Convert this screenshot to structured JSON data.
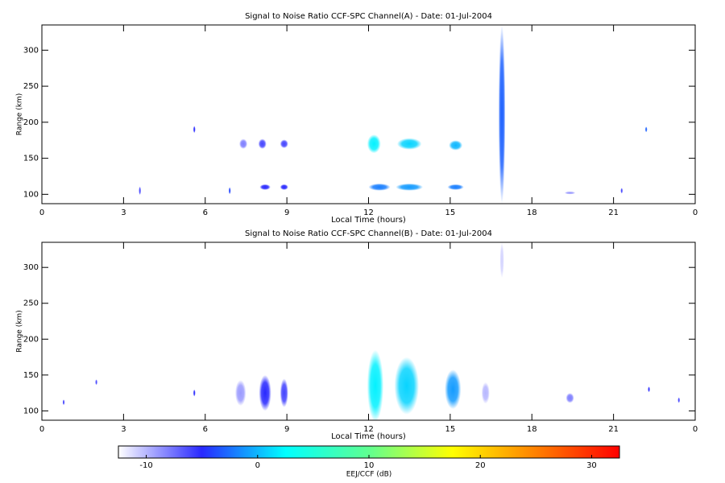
{
  "chart_data": [
    {
      "type": "heatmap",
      "title": "Signal to Noise Ratio CCF-SPC Channel(A) - Date: 01-Jul-2004",
      "xlabel": "Local Time (hours)",
      "ylabel": "Range (km)",
      "xlim": [
        0,
        24
      ],
      "xticks": [
        0,
        3,
        6,
        9,
        12,
        15,
        18,
        21,
        {
          "value": 24,
          "label": "0"
        }
      ],
      "ylim": [
        87,
        335
      ],
      "yticks": [
        100,
        150,
        200,
        250,
        300
      ],
      "blobs": [
        {
          "x": 7.4,
          "y": 170,
          "width": 0.3,
          "height": 14,
          "value": -8
        },
        {
          "x": 8.1,
          "y": 170,
          "width": 0.3,
          "height": 14,
          "value": -6
        },
        {
          "x": 8.9,
          "y": 170,
          "width": 0.3,
          "height": 12,
          "value": -6
        },
        {
          "x": 12.2,
          "y": 170,
          "width": 0.5,
          "height": 26,
          "value": 2
        },
        {
          "x": 13.5,
          "y": 170,
          "width": 0.9,
          "height": 16,
          "value": 1
        },
        {
          "x": 15.2,
          "y": 168,
          "width": 0.5,
          "height": 14,
          "value": 0
        },
        {
          "x": 8.2,
          "y": 110,
          "width": 0.4,
          "height": 8,
          "value": -5
        },
        {
          "x": 8.9,
          "y": 110,
          "width": 0.3,
          "height": 8,
          "value": -5
        },
        {
          "x": 12.4,
          "y": 110,
          "width": 0.8,
          "height": 10,
          "value": -2
        },
        {
          "x": 13.5,
          "y": 110,
          "width": 1.0,
          "height": 10,
          "value": -1
        },
        {
          "x": 15.2,
          "y": 110,
          "width": 0.6,
          "height": 8,
          "value": -2
        },
        {
          "x": 16.9,
          "y": 211,
          "width": 0.25,
          "height": 248,
          "value": -3
        },
        {
          "x": 3.6,
          "y": 105,
          "width": 0.08,
          "height": 12,
          "value": -6
        },
        {
          "x": 5.6,
          "y": 190,
          "width": 0.08,
          "height": 10,
          "value": -5
        },
        {
          "x": 6.9,
          "y": 105,
          "width": 0.08,
          "height": 10,
          "value": -4
        },
        {
          "x": 22.2,
          "y": 190,
          "width": 0.08,
          "height": 8,
          "value": -3
        },
        {
          "x": 21.3,
          "y": 105,
          "width": 0.08,
          "height": 8,
          "value": -6
        },
        {
          "x": 19.4,
          "y": 102,
          "width": 0.4,
          "height": 4,
          "value": -9
        }
      ]
    },
    {
      "type": "heatmap",
      "title": "Signal to Noise Ratio CCF-SPC Channel(B) - Date: 01-Jul-2004",
      "xlabel": "Local Time (hours)",
      "ylabel": "Range (km)",
      "xlim": [
        0,
        24
      ],
      "xticks": [
        0,
        3,
        6,
        9,
        12,
        15,
        18,
        21,
        {
          "value": 24,
          "label": "0"
        }
      ],
      "ylim": [
        87,
        335
      ],
      "yticks": [
        100,
        150,
        200,
        250,
        300
      ],
      "blobs": [
        {
          "x": 7.3,
          "y": 125,
          "width": 0.4,
          "height": 36,
          "value": -9
        },
        {
          "x": 8.2,
          "y": 125,
          "width": 0.45,
          "height": 50,
          "value": -5
        },
        {
          "x": 8.9,
          "y": 125,
          "width": 0.3,
          "height": 40,
          "value": -6
        },
        {
          "x": 12.25,
          "y": 135,
          "width": 0.6,
          "height": 100,
          "value": 2
        },
        {
          "x": 13.4,
          "y": 135,
          "width": 0.9,
          "height": 80,
          "value": 1
        },
        {
          "x": 15.1,
          "y": 130,
          "width": 0.6,
          "height": 55,
          "value": -1
        },
        {
          "x": 16.3,
          "y": 125,
          "width": 0.3,
          "height": 30,
          "value": -10
        },
        {
          "x": 16.9,
          "y": 310,
          "width": 0.15,
          "height": 50,
          "value": -11
        },
        {
          "x": 19.4,
          "y": 118,
          "width": 0.3,
          "height": 14,
          "value": -8
        },
        {
          "x": 2.0,
          "y": 140,
          "width": 0.08,
          "height": 8,
          "value": -6
        },
        {
          "x": 5.6,
          "y": 125,
          "width": 0.08,
          "height": 10,
          "value": -5
        },
        {
          "x": 0.8,
          "y": 112,
          "width": 0.08,
          "height": 8,
          "value": -6
        },
        {
          "x": 22.3,
          "y": 130,
          "width": 0.08,
          "height": 8,
          "value": -5
        },
        {
          "x": 23.4,
          "y": 115,
          "width": 0.08,
          "height": 8,
          "value": -6
        }
      ]
    }
  ],
  "colorbar": {
    "label": "EEJ/CCF (dB)",
    "lim": [
      -12.5,
      32.5
    ],
    "ticks": [
      -10,
      0,
      10,
      20,
      30
    ],
    "colormap": [
      "#ffffff",
      "#2828ff",
      "#00ffff",
      "#60ff90",
      "#ffff00",
      "#ff8000",
      "#ff0000"
    ]
  }
}
